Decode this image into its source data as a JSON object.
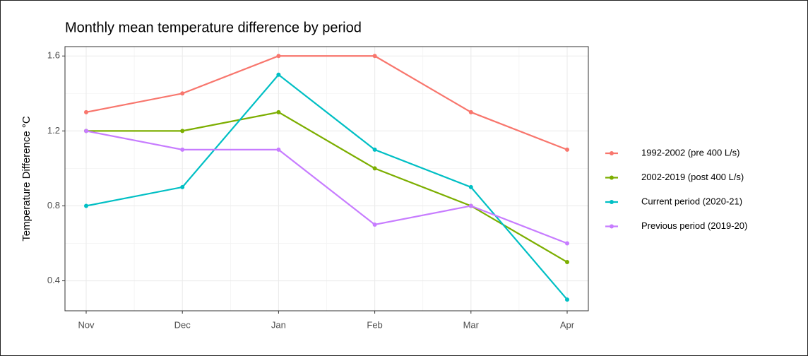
{
  "chart_data": {
    "type": "line",
    "title": "Monthly mean temperature difference by period",
    "y_label": "Temperature Difference °C",
    "categories": [
      "Nov",
      "Dec",
      "Jan",
      "Feb",
      "Mar",
      "Apr"
    ],
    "series": [
      {
        "name": "1992-2002 (pre 400 L/s)",
        "color": "#F8766D",
        "values": [
          1.3,
          1.4,
          1.6,
          1.6,
          1.3,
          1.1
        ]
      },
      {
        "name": "2002-2019 (post 400 L/s)",
        "color": "#7CAE00",
        "values": [
          1.2,
          1.2,
          1.3,
          1.0,
          0.8,
          0.5
        ]
      },
      {
        "name": "Current period (2020-21)",
        "color": "#00BFC4",
        "values": [
          0.8,
          0.9,
          1.5,
          1.1,
          0.9,
          0.3
        ]
      },
      {
        "name": "Previous period (2019-20)",
        "color": "#C77CFF",
        "values": [
          1.2,
          1.1,
          1.1,
          0.7,
          0.8,
          0.6
        ]
      }
    ],
    "ylim": [
      0.24,
      1.65
    ],
    "yticks": [
      0.4,
      0.8,
      1.2,
      1.6
    ],
    "grid": true,
    "legend": "right"
  }
}
